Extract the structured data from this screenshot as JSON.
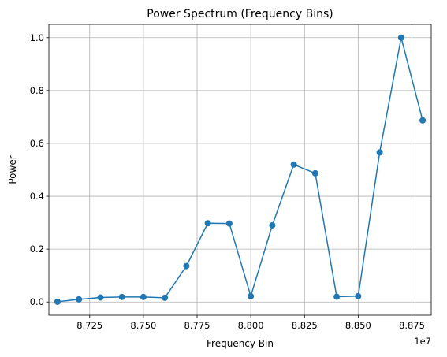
{
  "chart_data": {
    "type": "line",
    "title": "Power Spectrum (Frequency Bins)",
    "xlabel": "Frequency Bin",
    "ylabel": "Power",
    "x_offset_label": "1e7",
    "x_multiplier": 10000000,
    "xlim": [
      8.706,
      8.884
    ],
    "ylim": [
      -0.05,
      1.05
    ],
    "grid": true,
    "x_ticks": [
      8.725,
      8.75,
      8.775,
      8.8,
      8.825,
      8.85,
      8.875
    ],
    "x_tick_labels": [
      "8.725",
      "8.750",
      "8.775",
      "8.800",
      "8.825",
      "8.850",
      "8.875"
    ],
    "y_ticks": [
      0.0,
      0.2,
      0.4,
      0.6,
      0.8,
      1.0
    ],
    "y_tick_labels": [
      "0.0",
      "0.2",
      "0.4",
      "0.6",
      "0.8",
      "1.0"
    ],
    "series": [
      {
        "color": "#1f77b4",
        "marker": "circle",
        "x": [
          8.71,
          8.72,
          8.73,
          8.74,
          8.75,
          8.76,
          8.77,
          8.78,
          8.79,
          8.8,
          8.81,
          8.82,
          8.83,
          8.84,
          8.85,
          8.86,
          8.87,
          8.88
        ],
        "values": [
          0.001,
          0.01,
          0.017,
          0.019,
          0.019,
          0.016,
          0.136,
          0.298,
          0.297,
          0.022,
          0.29,
          0.52,
          0.487,
          0.02,
          0.022,
          0.566,
          1.0,
          0.687
        ]
      }
    ]
  }
}
